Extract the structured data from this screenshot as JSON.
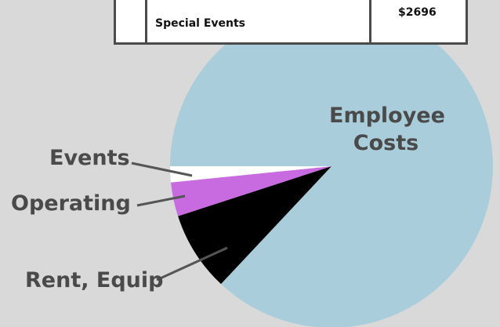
{
  "table": {
    "rows": [
      [
        "",
        "Special Events",
        "$2696"
      ]
    ]
  },
  "chart_data": {
    "type": "pie",
    "categories": [
      "Employee Costs",
      "Rent, Equip",
      "Operating",
      "Events"
    ],
    "values": [
      87,
      8,
      3.4,
      1.6
    ],
    "colors": [
      "#a9cddb",
      "#000000",
      "#c86be0",
      "#ffffff"
    ]
  }
}
